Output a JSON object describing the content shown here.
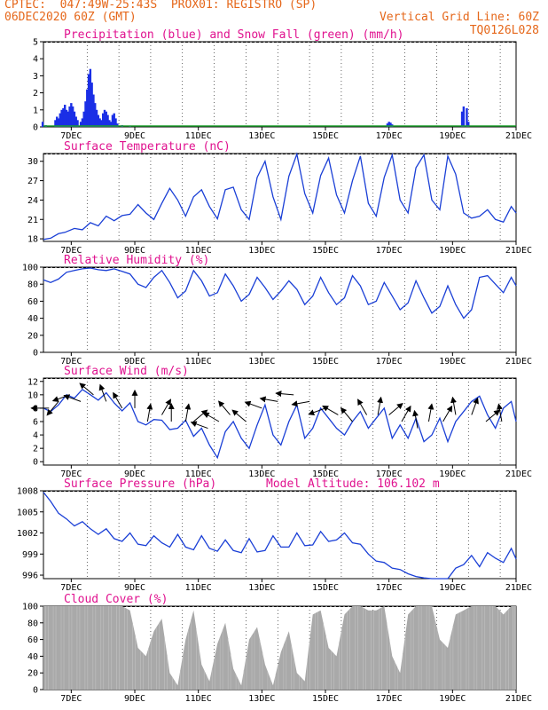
{
  "header": {
    "line1": "CPTEC:  047:49W-25:43S  PROX01: REGISTRO (SP)",
    "line2": "06DEC2020 60Z (GMT)",
    "grid_note": "Vertical Grid Line: 60Z",
    "model_id": "TQ0126L028"
  },
  "colors": {
    "header": "#e5671a",
    "titles": "#e0128f",
    "series": "#1a3fd6",
    "snow": "#1c9e2a",
    "cloud": "#a9a9a9",
    "precip": "#1a2fe6"
  },
  "chart_data": [
    {
      "id": "precip",
      "type": "bar",
      "title": "Precipitation (blue) and Snow Fall (green) (mm/h)",
      "ylim": [
        0,
        5
      ],
      "yticks": [
        0,
        1,
        2,
        3,
        4,
        5
      ],
      "xticks": [
        "7DEC",
        "9DEC",
        "11DEC",
        "13DEC",
        "15DEC",
        "17DEC",
        "19DEC",
        "21DEC"
      ],
      "xrange_days": [
        6.125,
        21
      ],
      "series": [
        {
          "kind": "precipitation",
          "points": [
            [
              6.1,
              0.3
            ],
            [
              6.2,
              0.1
            ],
            [
              6.5,
              0.4
            ],
            [
              6.55,
              0.6
            ],
            [
              6.6,
              0.5
            ],
            [
              6.65,
              0.8
            ],
            [
              6.7,
              1.0
            ],
            [
              6.75,
              1.1
            ],
            [
              6.8,
              1.3
            ],
            [
              6.85,
              1.0
            ],
            [
              6.9,
              0.9
            ],
            [
              6.95,
              1.2
            ],
            [
              7.0,
              1.4
            ],
            [
              7.05,
              1.2
            ],
            [
              7.1,
              0.9
            ],
            [
              7.15,
              0.6
            ],
            [
              7.2,
              0.4
            ],
            [
              7.3,
              0.3
            ],
            [
              7.35,
              0.5
            ],
            [
              7.4,
              0.9
            ],
            [
              7.45,
              1.5
            ],
            [
              7.5,
              2.2
            ],
            [
              7.55,
              3.1
            ],
            [
              7.6,
              3.4
            ],
            [
              7.65,
              2.6
            ],
            [
              7.7,
              1.9
            ],
            [
              7.75,
              1.4
            ],
            [
              7.8,
              1.0
            ],
            [
              7.85,
              0.7
            ],
            [
              7.9,
              0.5
            ],
            [
              7.95,
              0.4
            ],
            [
              8.0,
              0.8
            ],
            [
              8.05,
              1.0
            ],
            [
              8.1,
              0.9
            ],
            [
              8.15,
              0.7
            ],
            [
              8.2,
              0.4
            ],
            [
              8.25,
              0.3
            ],
            [
              8.3,
              0.7
            ],
            [
              8.35,
              0.8
            ],
            [
              8.4,
              0.5
            ],
            [
              8.45,
              0.2
            ],
            [
              8.6,
              0.1
            ],
            [
              8.85,
              0.05
            ],
            [
              16.95,
              0.2
            ],
            [
              17.0,
              0.3
            ],
            [
              17.05,
              0.25
            ],
            [
              17.1,
              0.15
            ],
            [
              19.3,
              0.9
            ],
            [
              19.35,
              1.2
            ],
            [
              19.45,
              1.1
            ],
            [
              19.5,
              0.3
            ]
          ]
        },
        {
          "kind": "snowfall",
          "points": []
        }
      ]
    },
    {
      "id": "temperature",
      "type": "line",
      "title": "Surface Temperature (nC)",
      "ylim": [
        17.6,
        31.2
      ],
      "yticks": [
        18,
        21,
        24,
        27,
        30
      ],
      "xticks": [
        "7DEC",
        "9DEC",
        "11DEC",
        "13DEC",
        "15DEC",
        "17DEC",
        "19DEC",
        "21DEC"
      ],
      "xrange_days": [
        6.125,
        21
      ],
      "x": [
        6.125,
        6.35,
        6.6,
        6.8,
        7.1,
        7.35,
        7.6,
        7.85,
        8.1,
        8.35,
        8.6,
        8.85,
        9.1,
        9.35,
        9.6,
        9.85,
        10.1,
        10.35,
        10.6,
        10.85,
        11.1,
        11.35,
        11.6,
        11.85,
        12.1,
        12.35,
        12.6,
        12.85,
        13.1,
        13.35,
        13.6,
        13.85,
        14.1,
        14.35,
        14.6,
        14.85,
        15.1,
        15.35,
        15.6,
        15.85,
        16.1,
        16.35,
        16.6,
        16.85,
        17.1,
        17.35,
        17.6,
        17.85,
        18.1,
        18.35,
        18.6,
        18.85,
        19.1,
        19.35,
        19.6,
        19.85,
        20.1,
        20.35,
        20.6,
        20.85,
        21
      ],
      "series": [
        {
          "values": [
            17.9,
            18.1,
            18.8,
            19.0,
            19.6,
            19.4,
            20.5,
            20.0,
            21.5,
            20.8,
            21.6,
            21.8,
            23.3,
            22.0,
            21.0,
            23.5,
            25.8,
            24.0,
            21.5,
            24.5,
            25.6,
            23.0,
            21.1,
            25.6,
            26.0,
            22.5,
            21.0,
            27.5,
            30.0,
            24.5,
            21.0,
            27.7,
            31.1,
            25.0,
            22.0,
            27.8,
            30.5,
            24.8,
            22.0,
            27.0,
            30.8,
            23.5,
            21.5,
            27.5,
            31.0,
            24.0,
            22.0,
            29.0,
            31.0,
            24.0,
            22.5,
            30.8,
            28.0,
            22.0,
            21.2,
            21.5,
            22.5,
            21.0,
            20.6,
            23.0,
            22.0
          ]
        }
      ]
    },
    {
      "id": "humidity",
      "type": "line",
      "title": "Relative Humidity (%)",
      "ylim": [
        0,
        100
      ],
      "yticks": [
        0,
        20,
        40,
        60,
        80,
        100
      ],
      "xticks": [
        "7DEC",
        "9DEC",
        "11DEC",
        "13DEC",
        "15DEC",
        "17DEC",
        "19DEC",
        "21DEC"
      ],
      "xrange_days": [
        6.125,
        21
      ],
      "x": [
        6.125,
        6.35,
        6.6,
        6.85,
        7.1,
        7.35,
        7.6,
        7.85,
        8.1,
        8.35,
        8.6,
        8.85,
        9.1,
        9.35,
        9.6,
        9.85,
        10.1,
        10.35,
        10.6,
        10.85,
        11.1,
        11.35,
        11.6,
        11.85,
        12.1,
        12.35,
        12.6,
        12.85,
        13.1,
        13.35,
        13.6,
        13.85,
        14.1,
        14.35,
        14.6,
        14.85,
        15.1,
        15.35,
        15.6,
        15.85,
        16.1,
        16.35,
        16.6,
        16.85,
        17.1,
        17.35,
        17.6,
        17.85,
        18.1,
        18.35,
        18.6,
        18.85,
        19.1,
        19.35,
        19.6,
        19.85,
        20.1,
        20.35,
        20.6,
        20.85,
        21
      ],
      "series": [
        {
          "values": [
            85,
            82,
            86,
            94,
            96,
            98,
            99,
            97,
            96,
            98,
            95,
            92,
            80,
            76,
            88,
            96,
            82,
            64,
            72,
            96,
            84,
            66,
            70,
            92,
            78,
            60,
            68,
            88,
            76,
            62,
            72,
            84,
            74,
            56,
            66,
            88,
            70,
            56,
            64,
            90,
            78,
            56,
            60,
            82,
            66,
            50,
            58,
            84,
            64,
            46,
            54,
            78,
            56,
            40,
            50,
            88,
            90,
            80,
            70,
            88,
            78
          ]
        }
      ]
    },
    {
      "id": "wind",
      "type": "line",
      "title": "Surface Wind (m/s)",
      "ylim": [
        -0.5,
        12.5
      ],
      "yticks": [
        0,
        2,
        4,
        6,
        8,
        10,
        12
      ],
      "xticks": [
        "7DEC",
        "9DEC",
        "11DEC",
        "13DEC",
        "15DEC",
        "17DEC",
        "19DEC",
        "21DEC"
      ],
      "xrange_days": [
        6.125,
        21
      ],
      "x": [
        6.125,
        6.35,
        6.6,
        6.85,
        7.1,
        7.35,
        7.6,
        7.85,
        8.1,
        8.35,
        8.6,
        8.85,
        9.1,
        9.35,
        9.6,
        9.85,
        10.1,
        10.35,
        10.6,
        10.85,
        11.1,
        11.35,
        11.6,
        11.85,
        12.1,
        12.35,
        12.6,
        12.85,
        13.1,
        13.35,
        13.6,
        13.85,
        14.1,
        14.35,
        14.6,
        14.85,
        15.1,
        15.35,
        15.6,
        15.85,
        16.1,
        16.35,
        16.6,
        16.85,
        17.1,
        17.35,
        17.6,
        17.85,
        18.1,
        18.35,
        18.6,
        18.85,
        19.1,
        19.35,
        19.6,
        19.85,
        20.1,
        20.35,
        20.6,
        20.85,
        21
      ],
      "series": [
        {
          "values": [
            8.0,
            7.5,
            8.5,
            10.0,
            9.5,
            10.8,
            10.0,
            9.2,
            10.3,
            8.8,
            7.6,
            8.8,
            6.0,
            5.5,
            6.3,
            6.2,
            4.8,
            5.0,
            6.2,
            3.8,
            5.0,
            2.5,
            0.6,
            4.5,
            6.0,
            3.5,
            2.0,
            5.5,
            8.5,
            4.0,
            2.5,
            6.0,
            8.5,
            3.5,
            5.0,
            8.0,
            6.5,
            5.0,
            4.0,
            6.0,
            7.5,
            5.0,
            6.5,
            8.0,
            3.5,
            5.5,
            3.5,
            6.5,
            3.0,
            4.0,
            6.5,
            3.0,
            6.0,
            7.5,
            9.0,
            9.8,
            7.0,
            5.0,
            8.0,
            9.0,
            6.0
          ]
        }
      ],
      "arrows": [
        [
          6.3,
          180,
          8
        ],
        [
          6.6,
          230,
          9
        ],
        [
          6.95,
          200,
          10
        ],
        [
          7.3,
          160,
          9
        ],
        [
          7.7,
          140,
          10
        ],
        [
          8.1,
          110,
          9
        ],
        [
          8.6,
          120,
          8
        ],
        [
          9.0,
          90,
          8
        ],
        [
          9.4,
          80,
          6
        ],
        [
          9.85,
          60,
          7
        ],
        [
          10.15,
          90,
          6
        ],
        [
          10.6,
          80,
          6
        ],
        [
          10.85,
          40,
          6
        ],
        [
          11.3,
          160,
          5
        ],
        [
          11.65,
          150,
          6
        ],
        [
          12.0,
          130,
          7
        ],
        [
          12.5,
          140,
          6
        ],
        [
          13.0,
          160,
          8
        ],
        [
          13.5,
          170,
          9
        ],
        [
          14.0,
          175,
          10
        ],
        [
          14.5,
          190,
          9
        ],
        [
          15.0,
          200,
          8
        ],
        [
          15.4,
          150,
          7
        ],
        [
          15.85,
          130,
          6
        ],
        [
          16.3,
          120,
          7
        ],
        [
          16.65,
          80,
          7
        ],
        [
          17.0,
          40,
          7
        ],
        [
          17.4,
          60,
          6
        ],
        [
          17.9,
          100,
          5
        ],
        [
          18.25,
          80,
          6
        ],
        [
          18.7,
          60,
          6
        ],
        [
          19.1,
          100,
          7
        ],
        [
          19.6,
          70,
          7
        ],
        [
          20.05,
          40,
          6
        ],
        [
          20.55,
          100,
          6
        ]
      ]
    },
    {
      "id": "pressure",
      "type": "line",
      "title": "Surface Pressure (hPa)",
      "subtitle": "Model Altitude: 106.102 m",
      "ylim": [
        995.5,
        1008
      ],
      "yticks": [
        996,
        999,
        1002,
        1005,
        1008
      ],
      "xticks": [
        "7DEC",
        "9DEC",
        "11DEC",
        "13DEC",
        "15DEC",
        "17DEC",
        "19DEC",
        "21DEC"
      ],
      "xrange_days": [
        6.125,
        21
      ],
      "x": [
        6.125,
        6.35,
        6.6,
        6.85,
        7.1,
        7.35,
        7.6,
        7.85,
        8.1,
        8.35,
        8.6,
        8.85,
        9.1,
        9.35,
        9.6,
        9.85,
        10.1,
        10.35,
        10.6,
        10.85,
        11.1,
        11.35,
        11.6,
        11.85,
        12.1,
        12.35,
        12.6,
        12.85,
        13.1,
        13.35,
        13.6,
        13.85,
        14.1,
        14.35,
        14.6,
        14.85,
        15.1,
        15.35,
        15.6,
        15.85,
        16.1,
        16.35,
        16.6,
        16.85,
        17.1,
        17.35,
        17.6,
        17.85,
        18.1,
        18.35,
        18.6,
        18.85,
        19.1,
        19.35,
        19.6,
        19.85,
        20.1,
        20.35,
        20.6,
        20.85,
        21
      ],
      "series": [
        {
          "values": [
            1007.8,
            1006.5,
            1004.8,
            1004.0,
            1003.0,
            1003.6,
            1002.6,
            1001.8,
            1002.6,
            1001.2,
            1000.8,
            1002.0,
            1000.4,
            1000.2,
            1001.6,
            1000.6,
            1000.0,
            1001.8,
            1000.0,
            999.6,
            1001.6,
            999.8,
            999.4,
            1001.0,
            999.5,
            999.2,
            1001.2,
            999.3,
            999.5,
            1001.6,
            1000.0,
            1000.0,
            1002.0,
            1000.2,
            1000.3,
            1002.2,
            1000.8,
            1001.0,
            1002.0,
            1000.6,
            1000.4,
            999.0,
            998.0,
            997.8,
            997.0,
            996.8,
            996.2,
            995.8,
            995.6,
            995.5,
            995.5,
            995.5,
            997.0,
            997.5,
            998.8,
            997.2,
            999.2,
            998.4,
            997.8,
            999.8,
            998.3
          ]
        }
      ]
    },
    {
      "id": "cloud",
      "type": "area",
      "title": "Cloud Cover (%)",
      "ylim": [
        0,
        100
      ],
      "yticks": [
        0,
        20,
        40,
        60,
        80,
        100
      ],
      "xticks": [
        "7DEC",
        "9DEC",
        "11DEC",
        "13DEC",
        "15DEC",
        "17DEC",
        "19DEC",
        "21DEC"
      ],
      "xrange_days": [
        6.125,
        21
      ],
      "x": [
        6.125,
        6.35,
        6.6,
        6.85,
        7.1,
        7.35,
        7.6,
        7.85,
        8.1,
        8.35,
        8.6,
        8.85,
        9.1,
        9.35,
        9.6,
        9.85,
        10.1,
        10.35,
        10.6,
        10.85,
        11.1,
        11.35,
        11.6,
        11.85,
        12.1,
        12.35,
        12.6,
        12.85,
        13.1,
        13.35,
        13.6,
        13.85,
        14.1,
        14.35,
        14.6,
        14.85,
        15.1,
        15.35,
        15.6,
        15.85,
        16.1,
        16.35,
        16.6,
        16.85,
        17.1,
        17.35,
        17.6,
        17.85,
        18.1,
        18.35,
        18.6,
        18.85,
        19.1,
        19.35,
        19.6,
        19.85,
        20.1,
        20.35,
        20.6,
        20.85,
        21
      ],
      "series": [
        {
          "values": [
            100,
            100,
            100,
            100,
            100,
            100,
            100,
            100,
            100,
            100,
            100,
            95,
            50,
            40,
            70,
            85,
            20,
            5,
            60,
            95,
            30,
            10,
            55,
            80,
            25,
            5,
            60,
            75,
            30,
            5,
            45,
            70,
            20,
            10,
            90,
            95,
            50,
            40,
            90,
            100,
            100,
            95,
            95,
            100,
            40,
            20,
            90,
            100,
            100,
            100,
            60,
            50,
            90,
            95,
            100,
            100,
            100,
            100,
            90,
            100,
            100
          ]
        }
      ]
    }
  ]
}
